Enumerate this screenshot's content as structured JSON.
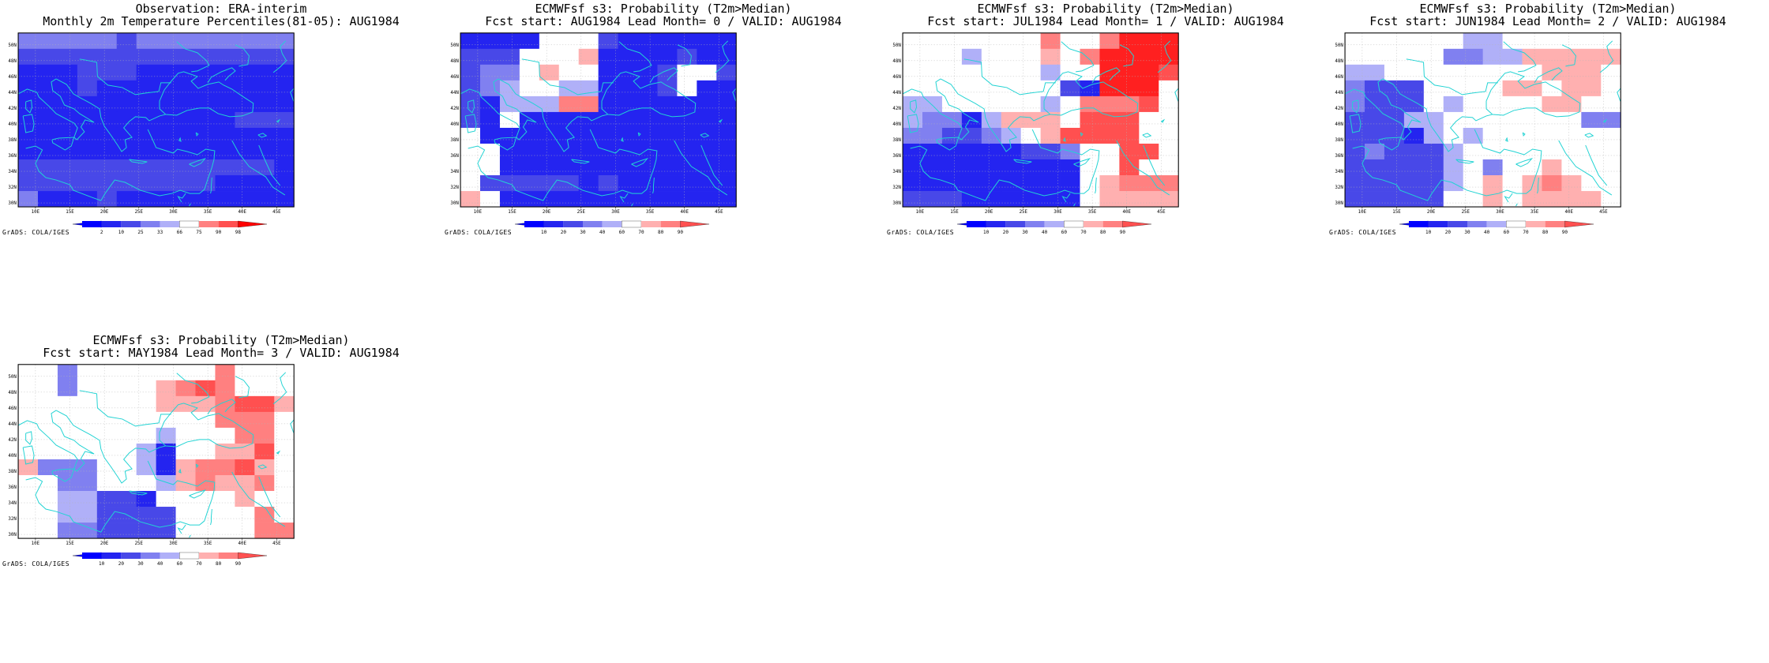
{
  "domain_note_free": true,
  "grid": {
    "lon_min": 7.5,
    "lon_max": 47.5,
    "lat_min": 29.5,
    "lat_max": 51.5,
    "cell_deg": 2.5
  },
  "axes": {
    "x_ticks": [
      "10E",
      "15E",
      "20E",
      "25E",
      "30E",
      "35E",
      "40E",
      "45E"
    ],
    "x_tick_values": [
      10,
      15,
      20,
      25,
      30,
      35,
      40,
      45
    ],
    "y_ticks": [
      "30N",
      "32N",
      "34N",
      "36N",
      "38N",
      "40N",
      "42N",
      "44N",
      "46N",
      "48N",
      "50N"
    ],
    "y_tick_values": [
      30,
      32,
      34,
      36,
      38,
      40,
      42,
      44,
      46,
      48,
      50
    ]
  },
  "colors": {
    "coast": "#22d3d3",
    "gridline": "#b4b4b4",
    "frame": "#000000",
    "scale": [
      "#0000ff",
      "#2424f0",
      "#4848e8",
      "#8080f0",
      "#b0b0f8",
      "#ffffff",
      "#ffb0b0",
      "#ff8080",
      "#ff5050",
      "#ff2020",
      "#ff0000"
    ]
  },
  "footer": "GrADS: COLA/IGES",
  "legends": {
    "obs": [
      "2",
      "10",
      "25",
      "33",
      "66",
      "75",
      "90",
      "98"
    ],
    "prob": [
      "10",
      "20",
      "30",
      "40",
      "60",
      "70",
      "80",
      "90"
    ]
  },
  "panels": [
    {
      "line1": "Observation: ERA-interim",
      "line2": "Monthly 2m Temperature Percentiles(81-05): AUG1984",
      "legend": "obs",
      "rows": [
        "33333233333333",
        "22222222222222",
        "11122211111111",
        "11121111111111",
        "11111111111111",
        "11111111111222",
        "11111111111111",
        "11111111111111",
        "22222222222221",
        "22222222221111",
        "31112111111111"
      ]
    },
    {
      "line1": "ECMWFsf s3: Probability (T2m>Median)",
      "line2": "Fcst start: AUG1984  Lead Month= 0 / VALID: AUG1984",
      "legend": "prob",
      "rows": [
        "11115552111111",
        "22255561111211",
        "23356551112552",
        "23455441112511",
        "21444771111111",
        "21511111111111",
        "51111111111111",
        "55111111111111",
        "55111111111111",
        "52222212111111",
        "65111111111111"
      ]
    },
    {
      "line1": "ECMWFsf s3: Probability (T2m>Median)",
      "line2": "Fcst start: JUL1984  Lead Month= 1 / VALID: AUG1984",
      "legend": "prob",
      "rows": [
        "55555557557999",
        "55545556579999",
        "55555554559998",
        "55555555219995",
        "44555554577785",
        "43314666588855",
        "33223456888855",
        "11111122355885",
        "11111111155855",
        "11111111156777",
        "22211111156666"
      ]
    },
    {
      "line1": "ECMWFsf s3: Probability (T2m>Median)",
      "line2": "Fcst start: JUN1984  Lead Month= 2 / VALID: AUG1984",
      "legend": "prob",
      "rows": [
        "55555544555555",
        "55555334466666",
        "44555555556665",
        "32225555665665",
        "32225455556655",
        "22244555555533",
        "22214545555555",
        "23222455555555",
        "22222453556555",
        "22222456567655",
        "22222556566665"
      ]
    },
    {
      "line1": "ECMWFsf s3: Probability (T2m>Median)",
      "line2": "Fcst start: MAY1984  Lead Month= 3 / VALID: AUG1984",
      "legend": "prob",
      "rows": [
        "55355555557555",
        "55355556787555",
        "55555556667886",
        "55555555557775",
        "55555554555775",
        "55555541556685",
        "63335541677865",
        "55335554676675",
        "55442215555655",
        "55442222555575",
        "55332222555577"
      ]
    }
  ]
}
